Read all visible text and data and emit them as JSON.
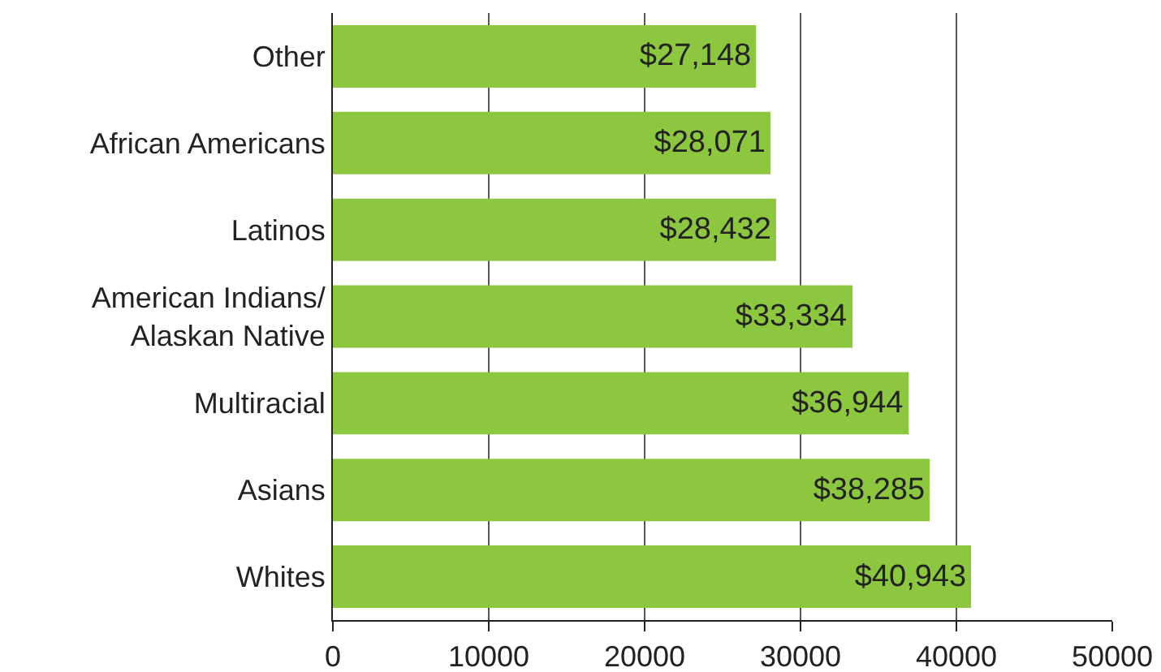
{
  "chart_data": {
    "type": "bar",
    "orientation": "horizontal",
    "categories": [
      "Other",
      "African Americans",
      "Latinos",
      "American Indians/\nAlaskan Native",
      "Multiracial",
      "Asians",
      "Whites"
    ],
    "values": [
      27148,
      28071,
      28432,
      33334,
      36944,
      38285,
      40943
    ],
    "value_labels": [
      "$27,148",
      "$28,071",
      "$28,432",
      "$33,334",
      "$36,944",
      "$38,285",
      "$40,943"
    ],
    "color": "#8dc63f",
    "xlim": [
      0,
      50000
    ],
    "xticks": [
      0,
      10000,
      20000,
      30000,
      40000,
      50000
    ],
    "grid": "x",
    "legend": false
  }
}
